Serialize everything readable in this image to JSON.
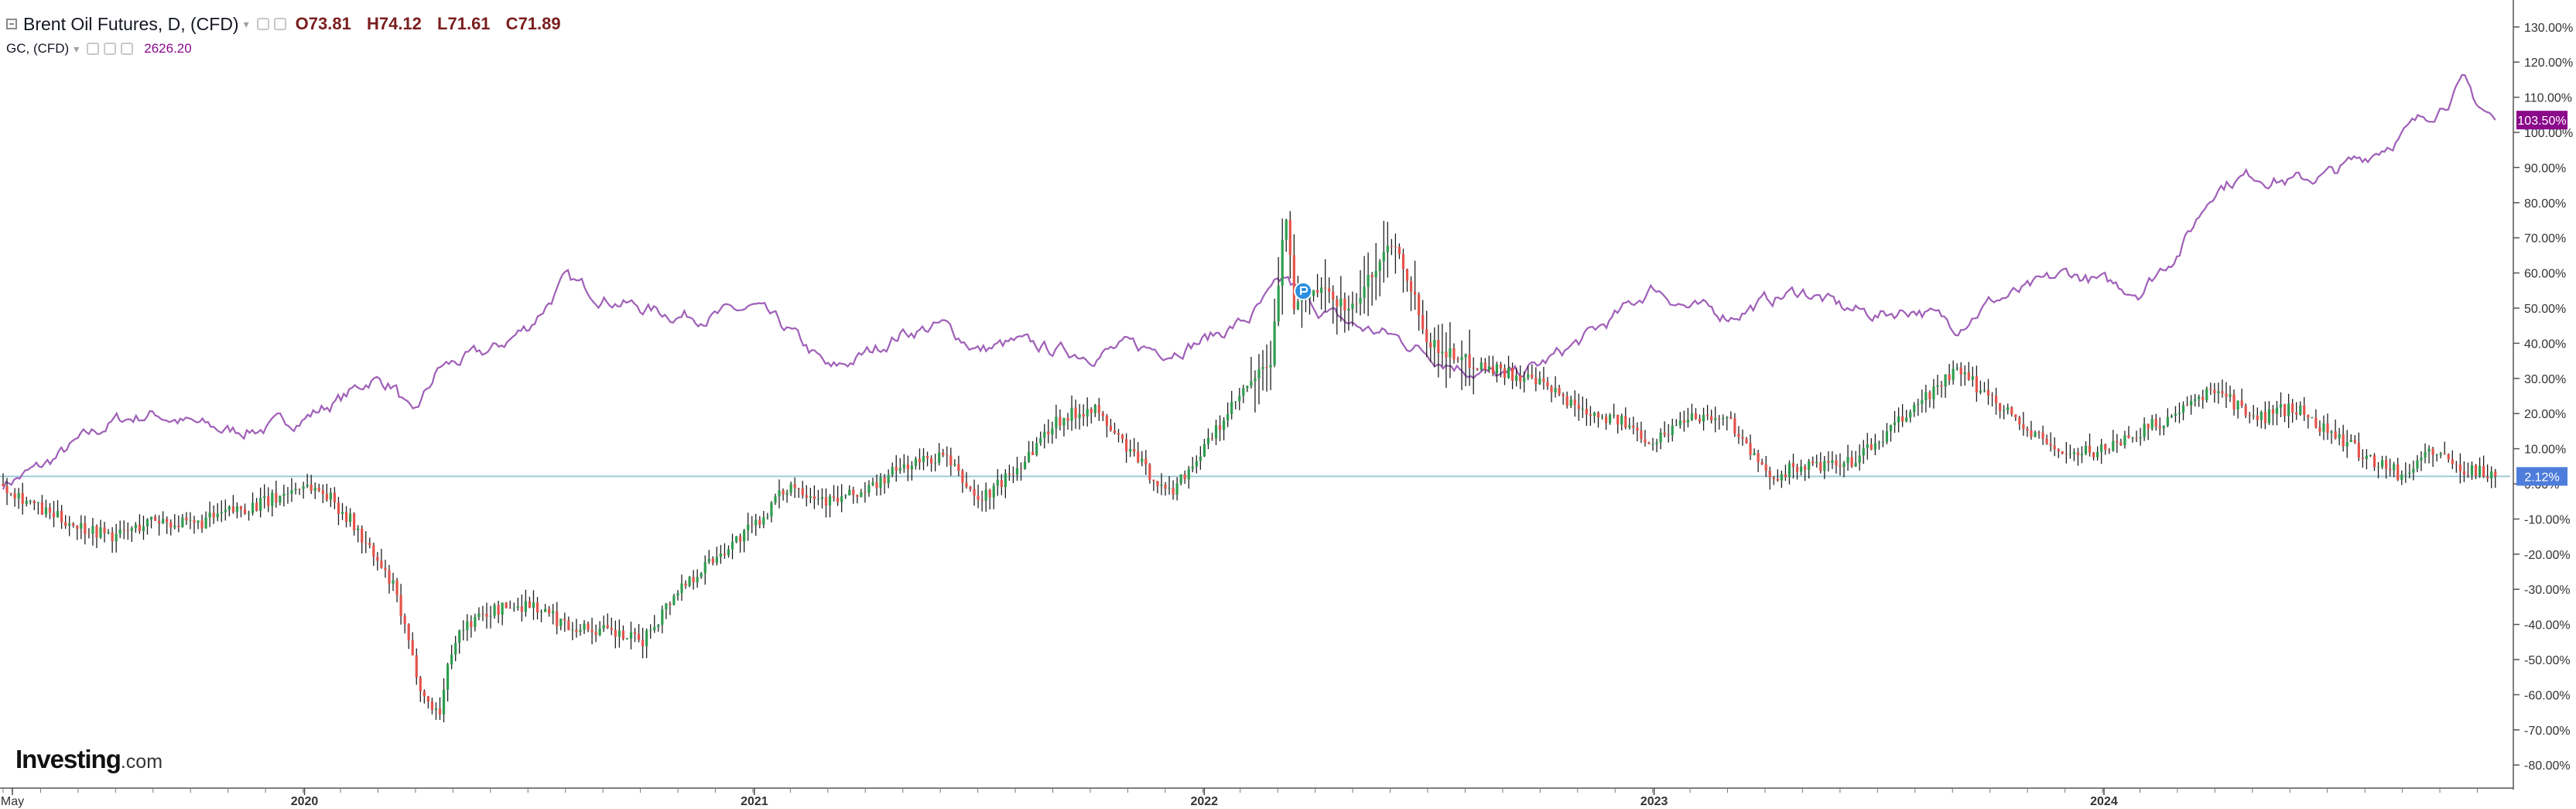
{
  "legend": {
    "main_series": "Brent Oil Futures, D, (CFD)",
    "ohlc": {
      "o_label": "O",
      "o": "73.81",
      "h_label": "H",
      "h": "74.12",
      "l_label": "L",
      "l": "71.61",
      "c_label": "C",
      "c": "71.89"
    },
    "compare_series": "GC, (CFD)",
    "compare_value": "2626.20"
  },
  "brand": {
    "name": "Investing",
    "suffix": ".com"
  },
  "colors": {
    "up": "#2e9e4f",
    "down": "#e5534b",
    "wick": "#1f1f1f",
    "gold_line": "#a05fb8",
    "gold_badge": "#8b0a8b",
    "brent_badge": "#4e7ddb",
    "baseline": "#9ecbd8"
  },
  "chart_data": {
    "type": "line",
    "title": "Brent Oil Futures, D, (CFD)",
    "y_axis_unit": "%",
    "ylim": [
      -80,
      135
    ],
    "y_ticks": [
      "130.00%",
      "120.00%",
      "110.00%",
      "100.00%",
      "90.00%",
      "80.00%",
      "70.00%",
      "60.00%",
      "50.00%",
      "40.00%",
      "30.00%",
      "20.00%",
      "10.00%",
      "0.00%",
      "-10.00%",
      "-20.00%",
      "-30.00%",
      "-40.00%",
      "-50.00%",
      "-60.00%",
      "-70.00%",
      "-80.00%"
    ],
    "x_ticks": [
      "May",
      "2020",
      "2021",
      "2022",
      "2023",
      "2024"
    ],
    "x_range": [
      "2019-05",
      "2024-11"
    ],
    "grid": false,
    "series": [
      {
        "name": "Brent Oil Futures, D, (CFD)",
        "style": "candlestick",
        "last_change_label": "2.12%",
        "last_change": 2.12,
        "x": [
          2019.33,
          2019.42,
          2019.5,
          2019.58,
          2019.67,
          2019.75,
          2019.83,
          2019.92,
          2020.0,
          2020.05,
          2020.1,
          2020.15,
          2020.2,
          2020.24,
          2020.27,
          2020.3,
          2020.33,
          2020.36,
          2020.42,
          2020.5,
          2020.58,
          2020.67,
          2020.75,
          2020.83,
          2020.92,
          2021.0,
          2021.08,
          2021.17,
          2021.25,
          2021.33,
          2021.42,
          2021.5,
          2021.58,
          2021.67,
          2021.75,
          2021.83,
          2021.92,
          2022.0,
          2022.08,
          2022.15,
          2022.18,
          2022.2,
          2022.25,
          2022.33,
          2022.42,
          2022.45,
          2022.5,
          2022.58,
          2022.67,
          2022.75,
          2022.83,
          2022.92,
          2023.0,
          2023.08,
          2023.17,
          2023.25,
          2023.33,
          2023.42,
          2023.5,
          2023.58,
          2023.67,
          2023.75,
          2023.83,
          2023.92,
          2024.0,
          2024.08,
          2024.17,
          2024.25,
          2024.33,
          2024.42,
          2024.5,
          2024.58,
          2024.67,
          2024.72,
          2024.78,
          2024.83,
          2024.87
        ],
        "values": [
          0,
          -8,
          -12,
          -15,
          -10,
          -12,
          -8,
          -5,
          0,
          -3,
          -10,
          -20,
          -30,
          -50,
          -62,
          -65,
          -45,
          -40,
          -36,
          -34,
          -40,
          -42,
          -45,
          -30,
          -20,
          -12,
          0,
          -5,
          -2,
          5,
          8,
          -5,
          4,
          18,
          22,
          10,
          -3,
          10,
          25,
          35,
          80,
          50,
          55,
          50,
          70,
          60,
          40,
          35,
          32,
          28,
          22,
          18,
          12,
          20,
          18,
          2,
          5,
          5,
          12,
          22,
          32,
          25,
          15,
          8,
          10,
          15,
          20,
          28,
          18,
          22,
          15,
          8,
          2,
          10,
          5,
          4,
          2.12
        ]
      },
      {
        "name": "GC, (CFD)",
        "style": "line",
        "last_change_label": "103.50%",
        "last_change": 103.5,
        "x": [
          2019.33,
          2019.42,
          2019.5,
          2019.58,
          2019.67,
          2019.75,
          2019.83,
          2019.92,
          2020.0,
          2020.08,
          2020.15,
          2020.2,
          2020.24,
          2020.3,
          2020.42,
          2020.5,
          2020.58,
          2020.67,
          2020.75,
          2020.83,
          2020.92,
          2021.0,
          2021.08,
          2021.17,
          2021.25,
          2021.33,
          2021.42,
          2021.5,
          2021.58,
          2021.67,
          2021.75,
          2021.83,
          2021.92,
          2022.0,
          2022.1,
          2022.18,
          2022.25,
          2022.33,
          2022.42,
          2022.5,
          2022.58,
          2022.67,
          2022.75,
          2022.83,
          2022.92,
          2023.0,
          2023.08,
          2023.17,
          2023.25,
          2023.33,
          2023.42,
          2023.5,
          2023.58,
          2023.67,
          2023.75,
          2023.83,
          2023.92,
          2024.0,
          2024.08,
          2024.17,
          2024.25,
          2024.33,
          2024.42,
          2024.5,
          2024.58,
          2024.67,
          2024.75,
          2024.8,
          2024.83,
          2024.87
        ],
        "values": [
          0,
          5,
          12,
          18,
          20,
          17,
          15,
          16,
          19,
          24,
          30,
          28,
          18,
          33,
          38,
          45,
          58,
          53,
          50,
          48,
          48,
          50,
          43,
          32,
          37,
          43,
          45,
          38,
          40,
          38,
          37,
          39,
          38,
          41,
          47,
          58,
          50,
          45,
          42,
          37,
          33,
          30,
          34,
          40,
          48,
          56,
          50,
          48,
          52,
          55,
          50,
          48,
          50,
          45,
          52,
          55,
          60,
          57,
          55,
          67,
          85,
          88,
          86,
          88,
          93,
          100,
          108,
          114,
          108,
          103.5
        ]
      }
    ]
  }
}
